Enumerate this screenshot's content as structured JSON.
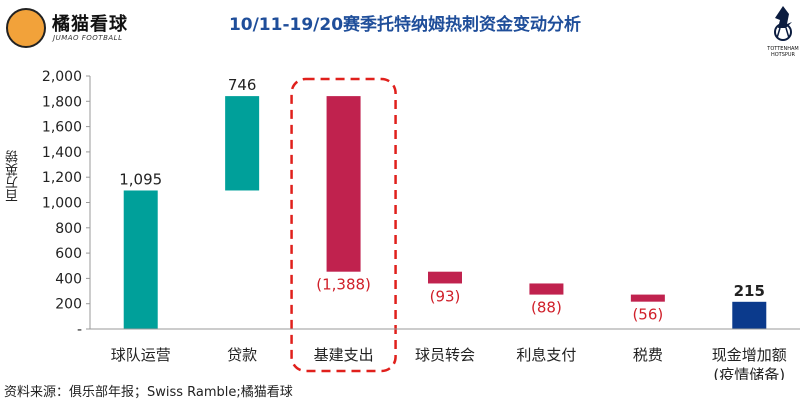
{
  "brand": {
    "name": "橘猫看球",
    "sub": "JUMAO FOOTBALL"
  },
  "club_crest": {
    "icon": "tottenham-hotspur-crest-icon",
    "text_line1": "TOTTENHAM",
    "text_line2": "HOTSPUR"
  },
  "source_text": "资料来源：俱乐部年报；Swiss Ramble;橘猫看球",
  "chart_data": {
    "type": "bar",
    "subtype": "waterfall",
    "title": "10/11-19/20赛季托特纳姆热刺资金变动分析",
    "ylabel": "百万英镑",
    "xlabel": "",
    "ylim": [
      0,
      2000
    ],
    "yticks": [
      0,
      200,
      400,
      600,
      800,
      1000,
      1200,
      1400,
      1600,
      1800,
      2000
    ],
    "ytick_labels": [
      "-",
      "200",
      "400",
      "600",
      "800",
      "1,000",
      "1,200",
      "1,400",
      "1,600",
      "1,800",
      "2,000"
    ],
    "grid": false,
    "legend": "none",
    "categories": [
      "球队运营",
      "贷款",
      "基建支出",
      "球员转会",
      "利息支付",
      "税费",
      "现金增加额"
    ],
    "category_notes": [
      "",
      "",
      "",
      "",
      "",
      "",
      "(疫情储备)"
    ],
    "values": [
      1095,
      746,
      -1388,
      -93,
      -88,
      -56,
      215
    ],
    "bar_ranges": [
      [
        0,
        1095
      ],
      [
        1095,
        1841
      ],
      [
        453,
        1841
      ],
      [
        360,
        453
      ],
      [
        272,
        360
      ],
      [
        216,
        272
      ],
      [
        0,
        215
      ]
    ],
    "data_labels": [
      "1,095",
      "746",
      "(1,388)",
      "(93)",
      "(88)",
      "(56)",
      "215"
    ],
    "highlight_category": "基建支出",
    "colors": {
      "inflow": "#00a09a",
      "outflow": "#c0224e",
      "total": "#0b3a8c",
      "negative_label": "#d0202a",
      "highlight_box": "#e0201c"
    }
  }
}
